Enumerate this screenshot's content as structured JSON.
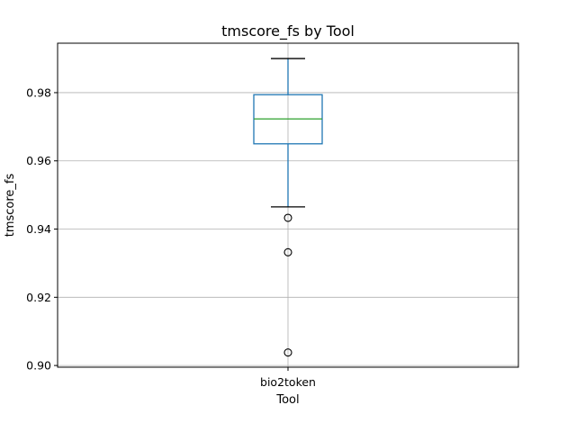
{
  "chart_data": {
    "type": "box",
    "title": "tmscore_fs by Tool",
    "xlabel": "Tool",
    "ylabel": "tmscore_fs",
    "ylim": [
      0.8995,
      0.9945
    ],
    "yticks": [
      0.9,
      0.92,
      0.94,
      0.96,
      0.98
    ],
    "ytick_labels": [
      "0.90",
      "0.92",
      "0.94",
      "0.96",
      "0.98"
    ],
    "grid": true,
    "categories": [
      "bio2token"
    ],
    "boxes": [
      {
        "category": "bio2token",
        "whisker_low": 0.9465,
        "q1": 0.965,
        "median": 0.9723,
        "q3": 0.9794,
        "whisker_high": 0.99,
        "outliers": [
          0.9433,
          0.9332,
          0.9038
        ]
      }
    ],
    "colors": {
      "box": "#1f77b4",
      "median": "#2ca02c",
      "whisker_cap": "#000000",
      "grid": "#b0b0b0",
      "frame": "#000000"
    }
  }
}
